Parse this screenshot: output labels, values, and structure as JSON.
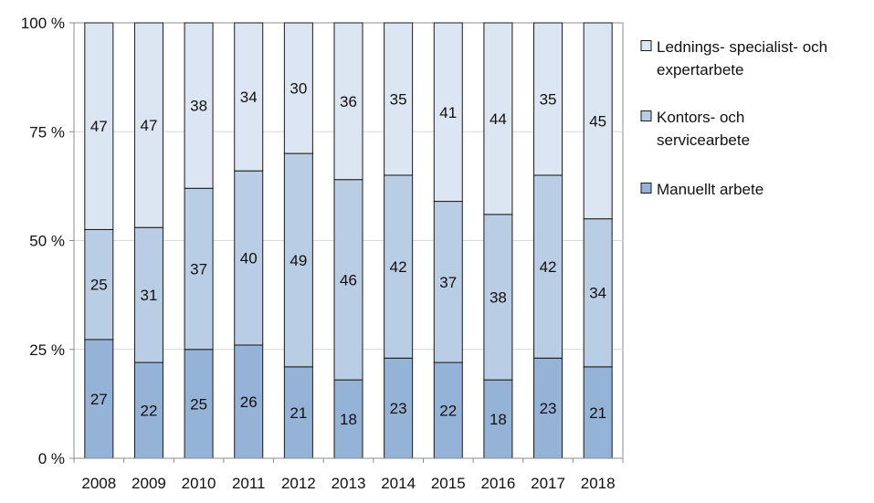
{
  "chart_data": {
    "type": "bar",
    "stacked": true,
    "normalized_percent": true,
    "categories": [
      "2008",
      "2009",
      "2010",
      "2011",
      "2012",
      "2013",
      "2014",
      "2015",
      "2016",
      "2017",
      "2018"
    ],
    "series": [
      {
        "name": "Manuellt arbete",
        "color": "#95b3d7",
        "values": [
          27,
          22,
          25,
          26,
          21,
          18,
          23,
          22,
          18,
          23,
          21
        ]
      },
      {
        "name": "Kontors- och servicearbete",
        "color": "#b9cde5",
        "values": [
          25,
          31,
          37,
          40,
          49,
          46,
          42,
          37,
          38,
          42,
          34
        ]
      },
      {
        "name": "Lednings- specialist- och expertarbete",
        "color": "#dce6f2",
        "values": [
          47,
          47,
          38,
          34,
          30,
          36,
          35,
          41,
          44,
          35,
          45
        ]
      }
    ],
    "ylim": [
      0,
      100
    ],
    "yticks": [
      {
        "value": 0,
        "label": "0 %"
      },
      {
        "value": 25,
        "label": "25 %"
      },
      {
        "value": 50,
        "label": "50 %"
      },
      {
        "value": 75,
        "label": "75 %"
      },
      {
        "value": 100,
        "label": "100 %"
      }
    ],
    "grid": true,
    "legend_position": "right",
    "legend": {
      "items": [
        {
          "lines": [
            "Lednings- specialist- och",
            "expertarbete"
          ],
          "color": "#dce6f2"
        },
        {
          "lines": [
            "Kontors- och",
            "servicearbete"
          ],
          "color": "#b9cde5"
        },
        {
          "lines": [
            "Manuellt arbete"
          ],
          "color": "#95b3d7"
        }
      ]
    }
  }
}
